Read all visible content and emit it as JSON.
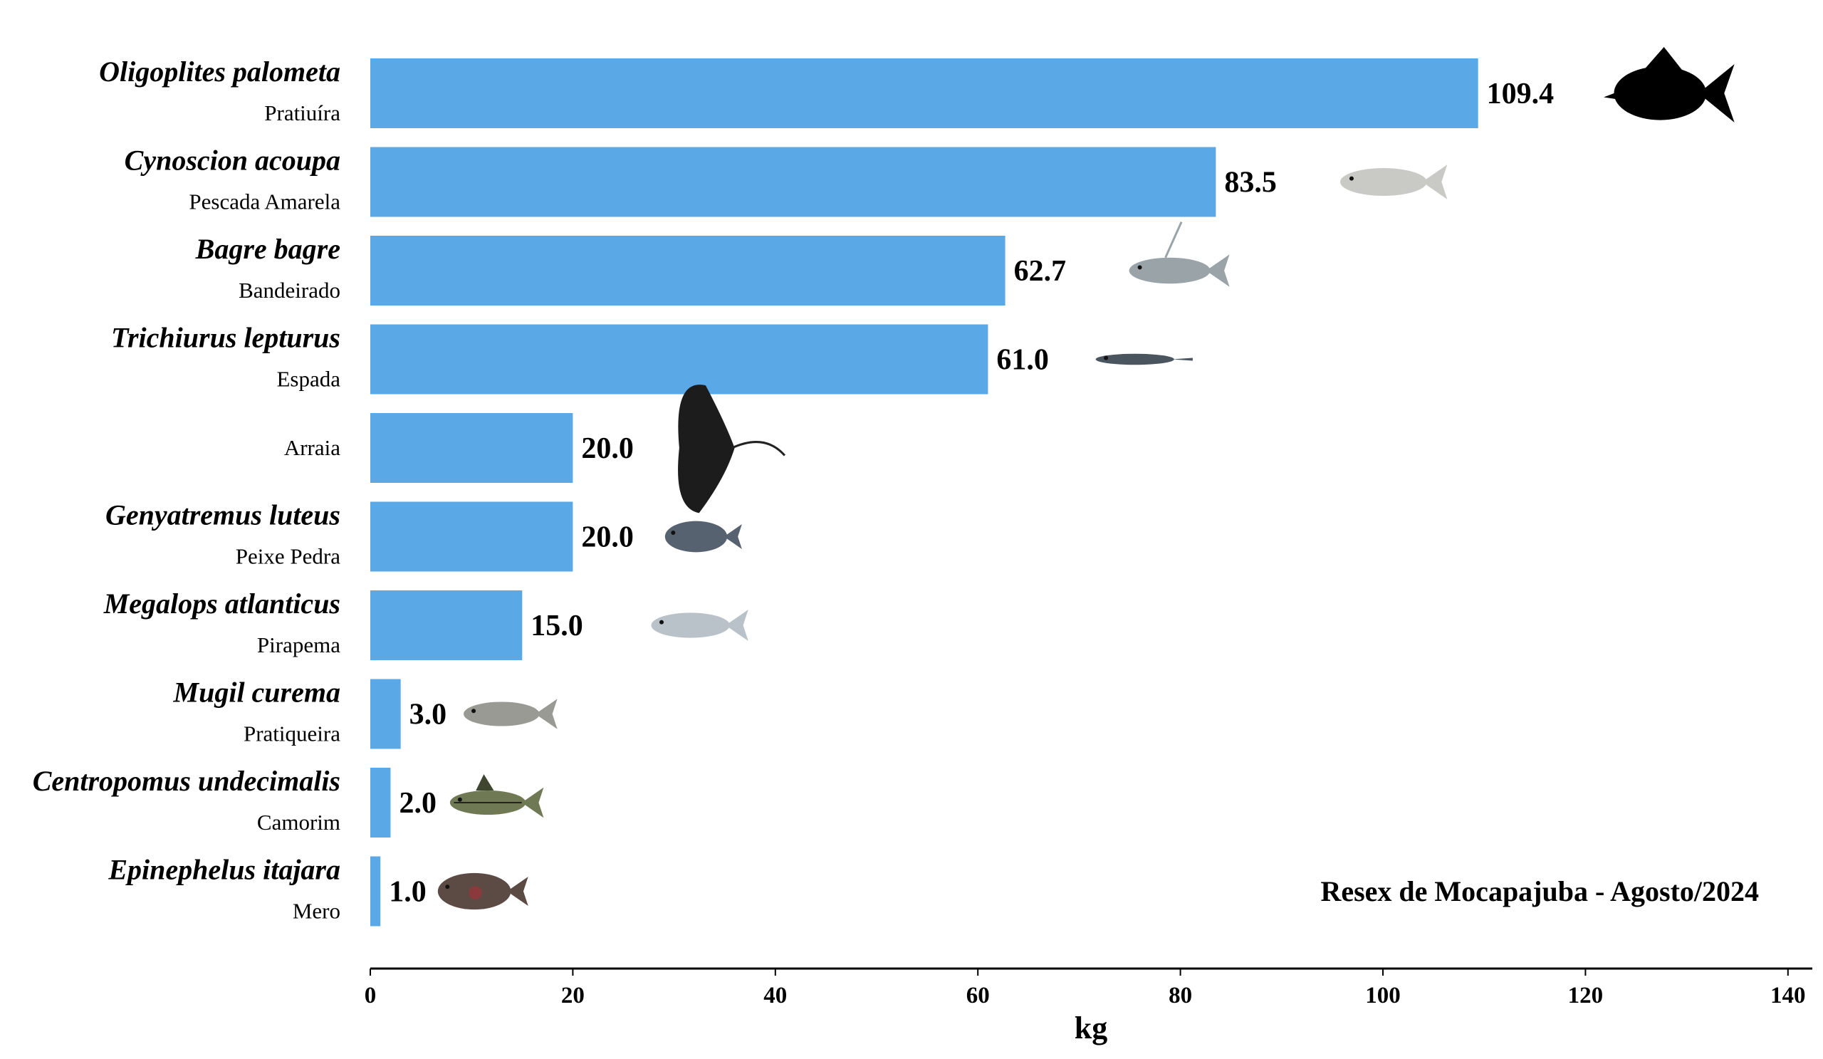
{
  "chart_data": {
    "type": "bar",
    "orientation": "horizontal",
    "categories": [
      {
        "scientific": "Oligoplites palometa",
        "common": "Pratiuíra"
      },
      {
        "scientific": "Cynoscion acoupa",
        "common": "Pescada Amarela"
      },
      {
        "scientific": "Bagre bagre",
        "common": "Bandeirado"
      },
      {
        "scientific": "Trichiurus lepturus",
        "common": "Espada"
      },
      {
        "scientific": "",
        "common": "Arraia"
      },
      {
        "scientific": "Genyatremus luteus",
        "common": "Peixe Pedra"
      },
      {
        "scientific": "Megalops atlanticus",
        "common": "Pirapema"
      },
      {
        "scientific": "Mugil curema",
        "common": "Pratiqueira"
      },
      {
        "scientific": "Centropomus undecimalis",
        "common": "Camorim"
      },
      {
        "scientific": "Epinephelus itajara",
        "common": "Mero"
      }
    ],
    "values": [
      109.4,
      83.5,
      62.7,
      61.0,
      20.0,
      20.0,
      15.0,
      3.0,
      2.0,
      1.0
    ],
    "value_labels": [
      "109.4",
      "83.5",
      "62.7",
      "61.0",
      "20.0",
      "20.0",
      "15.0",
      "3.0",
      "2.0",
      "1.0"
    ],
    "icons": [
      "pratiuira-fish-icon",
      "pescada-amarela-fish-icon",
      "bandeirado-catfish-icon",
      "espada-ribbonfish-icon",
      "arraia-stingray-icon",
      "peixe-pedra-fish-icon",
      "pirapema-tarpon-icon",
      "pratiqueira-mullet-icon",
      "camorim-snook-icon",
      "mero-grouper-icon"
    ],
    "xlabel": "kg",
    "xlim": [
      0,
      142
    ],
    "xticks": [
      0,
      20,
      40,
      60,
      80,
      100,
      120,
      140
    ],
    "annotation": "Resex de Mocapajuba - Agosto/2024",
    "bar_color": "#5aa8e6",
    "grid": false
  }
}
